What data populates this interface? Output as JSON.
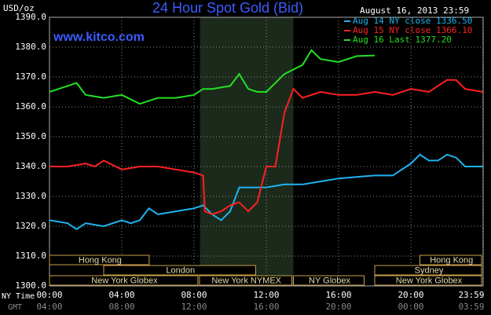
{
  "chart_data": {
    "type": "line",
    "title": "24 Hour Spot Gold (Bid)",
    "timestamp": "August 16, 2013 23:59",
    "y_label": "USD/oz",
    "watermark": "www.kitco.com",
    "x_row_label": "NY Time",
    "x2_row_label": "GMT",
    "xlim": [
      0,
      24
    ],
    "xticks": [
      {
        "value": 0,
        "label": "00:00"
      },
      {
        "value": 4,
        "label": "04:00"
      },
      {
        "value": 8,
        "label": "08:00"
      },
      {
        "value": 12,
        "label": "12:00"
      },
      {
        "value": 16,
        "label": "16:00"
      },
      {
        "value": 20,
        "label": "20:00"
      },
      {
        "value": 23.98,
        "label": "23:59"
      }
    ],
    "gmt_labels": [
      "04:00",
      "08:00",
      "12:00",
      "16:00",
      "20:00",
      "00:00",
      "03:59"
    ],
    "ylim": [
      1300,
      1390
    ],
    "yticks": [
      {
        "value": 1300,
        "label": "1300.0"
      },
      {
        "value": 1310,
        "label": "1310.0"
      },
      {
        "value": 1320,
        "label": "1320.0"
      },
      {
        "value": 1330,
        "label": "1330.0"
      },
      {
        "value": 1340,
        "label": "1340.0"
      },
      {
        "value": 1350,
        "label": "1350.0"
      },
      {
        "value": 1360,
        "label": "1360.0"
      },
      {
        "value": 1370,
        "label": "1370.0"
      },
      {
        "value": 1380,
        "label": "1380.0"
      },
      {
        "value": 1390,
        "label": "1390.0"
      }
    ],
    "grid": true,
    "shaded": [
      8.33,
      13.5
    ],
    "sessions": [
      [
        {
          "label": "Hong Kong",
          "start": 0,
          "end": 5.6
        },
        {
          "label": "Hong Kong",
          "start": 20.5,
          "end": 24
        }
      ],
      [
        {
          "label": "London",
          "start": 3,
          "end": 11.5
        },
        {
          "label": "Sydney",
          "start": 18,
          "end": 24
        }
      ],
      [
        {
          "label": "New York Globex",
          "start": 0,
          "end": 8.3
        },
        {
          "label": "New York NYMEX",
          "start": 8.3,
          "end": 13.5
        },
        {
          "label": "NY Globex",
          "start": 13.5,
          "end": 17.5
        },
        {
          "label": "New York Globex",
          "start": 18,
          "end": 24
        }
      ]
    ],
    "series": [
      {
        "name": "Aug 14 NY close 1336.50",
        "color": "#1eb4f0",
        "x": [
          0,
          1,
          1.5,
          2,
          3,
          4,
          4.5,
          5,
          5.5,
          6,
          7,
          8,
          8.5,
          9,
          9.5,
          10,
          10.5,
          11,
          12,
          13,
          14,
          15,
          16,
          17,
          18,
          19,
          19.5,
          20,
          20.5,
          21,
          21.5,
          22,
          22.5,
          23,
          23.98
        ],
        "values": [
          1322,
          1321,
          1319,
          1321,
          1320,
          1322,
          1321,
          1322,
          1326,
          1324,
          1325,
          1326,
          1327,
          1324,
          1322,
          1325,
          1333,
          1333,
          1333,
          1334,
          1334,
          1335,
          1336,
          1336.5,
          1337,
          1337,
          1339,
          1341,
          1344,
          1342,
          1342,
          1344,
          1343,
          1340,
          1340
        ]
      },
      {
        "name": "Aug 15 NY close 1366.10",
        "color": "#ff2020",
        "x": [
          0,
          1,
          2,
          2.5,
          3,
          4,
          5,
          6,
          7,
          8,
          8.5,
          8.6,
          9,
          9.5,
          10,
          10.5,
          11,
          11.5,
          12,
          12.5,
          13,
          13.5,
          14,
          15,
          16,
          17,
          18,
          19,
          20,
          21,
          22,
          22.5,
          23,
          23.98
        ],
        "values": [
          1340,
          1340,
          1341,
          1340,
          1342,
          1339,
          1340,
          1340,
          1339,
          1338,
          1337,
          1325,
          1324,
          1325,
          1327,
          1328,
          1325,
          1328,
          1340,
          1340,
          1358,
          1366,
          1363,
          1365,
          1364,
          1364,
          1365,
          1364,
          1366,
          1365,
          1369,
          1369,
          1366,
          1365
        ]
      },
      {
        "name": "Aug 16 Last 1377.20",
        "color": "#22e022",
        "x": [
          0,
          1,
          1.5,
          2,
          3,
          4,
          5,
          6,
          7,
          8,
          8.5,
          9,
          10,
          10.5,
          11,
          11.5,
          12,
          12.5,
          13,
          14,
          14.5,
          15,
          16,
          17,
          18
        ],
        "values": [
          1365,
          1367,
          1368,
          1364,
          1363,
          1364,
          1361,
          1363,
          1363,
          1364,
          1366,
          1366,
          1367,
          1371,
          1366,
          1365,
          1365,
          1368,
          1371,
          1374,
          1379,
          1376,
          1375,
          1377,
          1377.2
        ]
      }
    ]
  }
}
